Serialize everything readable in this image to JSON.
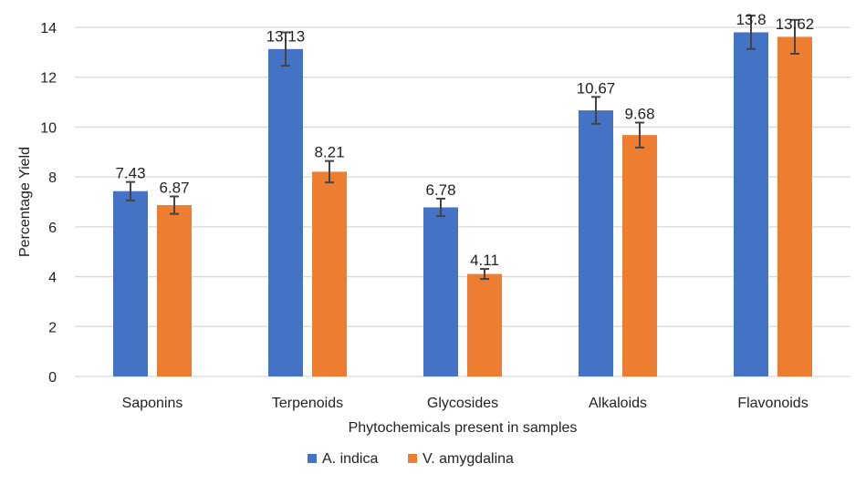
{
  "chart_data": {
    "type": "bar",
    "title": "",
    "xlabel": "Phytochemicals present in samples",
    "ylabel": "Percentage  Yield",
    "ylim": [
      0,
      14
    ],
    "yticks": [
      0,
      2,
      4,
      6,
      8,
      10,
      12,
      14
    ],
    "grid": true,
    "legend_position": "bottom",
    "categories": [
      "Saponins",
      "Terpenoids",
      "Glycosides",
      "Alkaloids",
      "Flavonoids"
    ],
    "series": [
      {
        "name": "A. indica",
        "color": "#4472C4",
        "values": [
          7.43,
          13.13,
          6.78,
          10.67,
          13.8
        ],
        "labels": [
          "7.43",
          "13.13",
          "6.78",
          "10.67",
          "13.8"
        ],
        "errors": [
          0.37,
          0.67,
          0.35,
          0.54,
          0.67
        ]
      },
      {
        "name": "V. amygdalina",
        "color": "#ED7D31",
        "values": [
          6.87,
          8.21,
          4.11,
          9.68,
          13.62
        ],
        "labels": [
          "6.87",
          "8.21",
          "4.11",
          "9.68",
          "13.62"
        ],
        "errors": [
          0.35,
          0.43,
          0.2,
          0.5,
          0.68
        ]
      }
    ]
  }
}
